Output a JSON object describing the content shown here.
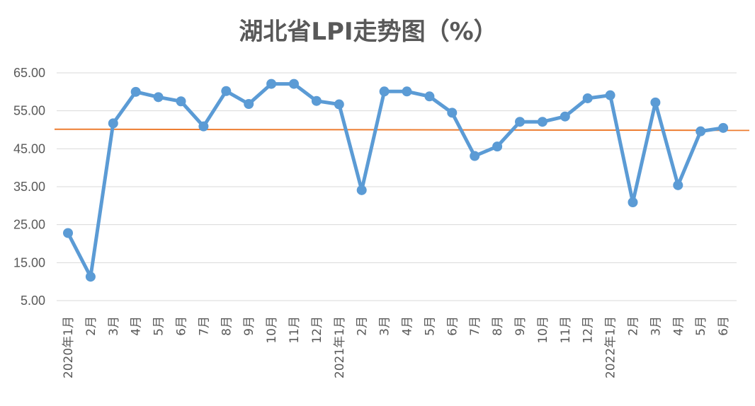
{
  "chart_data": {
    "type": "line",
    "title": "湖北省LPI走势图（%）",
    "xlabel": "",
    "ylabel": "",
    "ylim": [
      5,
      65
    ],
    "yticks": [
      "65.00",
      "55.00",
      "45.00",
      "35.00",
      "25.00",
      "15.00",
      "5.00"
    ],
    "grid": true,
    "categories": [
      "2020年1月",
      "2月",
      "3月",
      "4月",
      "5月",
      "6月",
      "7月",
      "8月",
      "9月",
      "10月",
      "11月",
      "12月",
      "2021年1月",
      "2月",
      "3月",
      "4月",
      "5月",
      "6月",
      "7月",
      "8月",
      "9月",
      "10月",
      "11月",
      "12月",
      "2022年1月",
      "2月",
      "3月",
      "4月",
      "5月",
      "6月"
    ],
    "series": [
      {
        "values": [
          22.8,
          11.3,
          51.7,
          60.0,
          58.6,
          57.5,
          50.9,
          60.2,
          56.8,
          62.1,
          62.1,
          57.6,
          56.7,
          34.1,
          60.1,
          60.1,
          58.8,
          54.5,
          43.1,
          45.6,
          52.1,
          52.1,
          53.5,
          58.3,
          59.1,
          30.9,
          57.2,
          35.4,
          49.6,
          50.5
        ],
        "color": "#5b9bd5"
      }
    ],
    "reference_line": {
      "value": 50,
      "color": "#ed7d31"
    }
  }
}
